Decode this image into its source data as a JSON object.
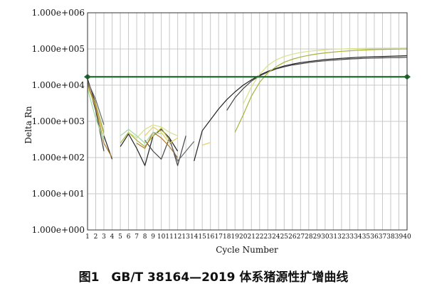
{
  "chart_data": {
    "type": "line",
    "caption": "图1　GB/T 38164—2019 体系猪源性扩增曲线",
    "xlabel": "Cycle Number",
    "ylabel": "Delta Rn",
    "yscale": "log",
    "ylim": [
      1,
      1000000
    ],
    "xlim": [
      1,
      40
    ],
    "grid": true,
    "y_ticks": [
      "1.000e+000",
      "1.000e+001",
      "1.000e+002",
      "1.000e+003",
      "1.000e+004",
      "1.000e+005",
      "1.000e+006"
    ],
    "x_ticks": [
      "1",
      "2",
      "3",
      "4",
      "5",
      "6",
      "7",
      "8",
      "9",
      "10",
      "11",
      "12",
      "13",
      "14",
      "15",
      "16",
      "17",
      "18",
      "19",
      "20",
      "21",
      "22",
      "23",
      "24",
      "25",
      "26",
      "27",
      "28",
      "29",
      "30",
      "31",
      "32",
      "33",
      "34",
      "35",
      "36",
      "37",
      "38",
      "39",
      "40"
    ],
    "threshold": {
      "value": 17000,
      "color": "#1f6b2e"
    },
    "series": [
      {
        "color": "#222222",
        "segments": [
          {
            "x": [
              1,
              2,
              3,
              4
            ],
            "y": [
              15000,
              3000,
              400,
              90
            ]
          },
          {
            "x": [
              5,
              6,
              7,
              8,
              9,
              10,
              11,
              12
            ],
            "y": [
              200,
              450,
              180,
              60,
              400,
              600,
              350,
              150
            ]
          },
          {
            "x": [
              14,
              15,
              16,
              17,
              18,
              19,
              20,
              21,
              22,
              23,
              24,
              25,
              26,
              27,
              28,
              29,
              30,
              31,
              32,
              33,
              34,
              35,
              36,
              37,
              38,
              39,
              40
            ],
            "y": [
              80,
              550,
              1100,
              2200,
              4000,
              6500,
              10000,
              14000,
              19000,
              24000,
              29000,
              34000,
              38000,
              42000,
              45000,
              48000,
              51000,
              53000,
              55000,
              57000,
              59000,
              60000,
              61000,
              62000,
              63000,
              64000,
              65000
            ]
          }
        ]
      },
      {
        "color": "#444444",
        "segments": [
          {
            "x": [
              1,
              2,
              3
            ],
            "y": [
              12000,
              2000,
              150
            ]
          },
          {
            "x": [
              8,
              9,
              10,
              11,
              12,
              13
            ],
            "y": [
              300,
              150,
              90,
              350,
              60,
              400
            ]
          },
          {
            "x": [
              18,
              19,
              20,
              21,
              22,
              23,
              24,
              25,
              26,
              27,
              28,
              29,
              30,
              31,
              32,
              33,
              34,
              35,
              36,
              37,
              38,
              39,
              40
            ],
            "y": [
              2000,
              4500,
              8000,
              13000,
              18000,
              23000,
              28000,
              32000,
              36000,
              39000,
              42000,
              45000,
              47000,
              49000,
              51000,
              53000,
              54000,
              55000,
              56000,
              57000,
              58000,
              58000,
              59000
            ]
          }
        ]
      },
      {
        "color": "#a8b33a",
        "segments": [
          {
            "x": [
              1,
              2,
              3
            ],
            "y": [
              10000,
              3000,
              500
            ]
          },
          {
            "x": [
              5,
              6,
              7,
              8,
              9,
              10,
              11
            ],
            "y": [
              250,
              500,
              300,
              200,
              400,
              650,
              300
            ]
          },
          {
            "x": [
              19,
              20,
              21,
              22,
              23,
              24,
              25,
              26,
              27,
              28,
              29,
              30,
              31,
              32,
              33,
              34,
              35,
              36,
              37,
              38,
              39,
              40
            ],
            "y": [
              500,
              1500,
              5000,
              12000,
              22000,
              32000,
              43000,
              52000,
              60000,
              67000,
              73000,
              78000,
              82000,
              86000,
              89000,
              92000,
              94000,
              96000,
              97000,
              98000,
              99000,
              100000
            ]
          }
        ]
      },
      {
        "color": "#d8e08a",
        "segments": [
          {
            "x": [
              1,
              2,
              3
            ],
            "y": [
              9000,
              2500,
              400
            ]
          },
          {
            "x": [
              6,
              7,
              8,
              9,
              10,
              11,
              12
            ],
            "y": [
              500,
              350,
              600,
              800,
              700,
              500,
              400
            ]
          },
          {
            "x": [
              20,
              21,
              22,
              23,
              24,
              25,
              26,
              27,
              28,
              29,
              30,
              31,
              32,
              33,
              34,
              35,
              36,
              37,
              38,
              39,
              40
            ],
            "y": [
              3000,
              9000,
              20000,
              35000,
              50000,
              62000,
              72000,
              80000,
              86000,
              91000,
              95000,
              98000,
              100000,
              102000,
              103000,
              104000,
              105000,
              105000,
              106000,
              106000,
              107000
            ]
          }
        ]
      },
      {
        "color": "#b07a2a",
        "segments": [
          {
            "x": [
              1,
              2,
              3,
              4
            ],
            "y": [
              11000,
              2500,
              250,
              100
            ]
          },
          {
            "x": [
              7,
              8,
              9,
              10,
              11,
              12
            ],
            "y": [
              250,
              180,
              500,
              350,
              200,
              100
            ]
          }
        ]
      },
      {
        "color": "#9fd6a0",
        "segments": [
          {
            "x": [
              1,
              2,
              3
            ],
            "y": [
              8000,
              1200,
              300
            ]
          },
          {
            "x": [
              5,
              6,
              7,
              8,
              9,
              10
            ],
            "y": [
              400,
              600,
              400,
              250,
              500,
              450
            ]
          }
        ]
      },
      {
        "color": "#666666",
        "segments": [
          {
            "x": [
              1,
              2,
              3
            ],
            "y": [
              13000,
              4000,
              800
            ]
          },
          {
            "x": [
              11,
              12,
              13,
              14
            ],
            "y": [
              300,
              80,
              150,
              280
            ]
          }
        ]
      },
      {
        "color": "#e8d060",
        "segments": [
          {
            "x": [
              8,
              9,
              10,
              11,
              12
            ],
            "y": [
              400,
              700,
              500,
              250,
              350
            ]
          },
          {
            "x": [
              15,
              16
            ],
            "y": [
              220,
              260
            ]
          }
        ]
      }
    ]
  }
}
